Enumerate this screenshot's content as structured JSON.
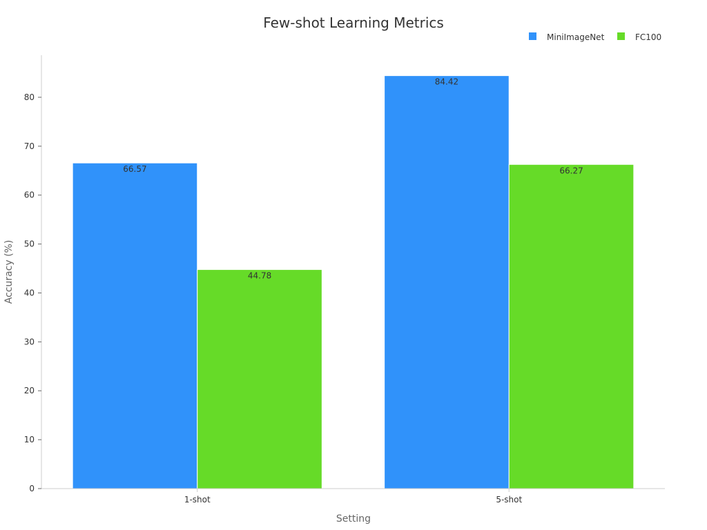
{
  "chart_data": {
    "type": "bar",
    "title": "Few-shot Learning Metrics",
    "xlabel": "Setting",
    "ylabel": "Accuracy (%)",
    "categories": [
      "1-shot",
      "5-shot"
    ],
    "series": [
      {
        "name": "MiniImageNet",
        "color": "#3092fa",
        "values": [
          66.57,
          84.42
        ]
      },
      {
        "name": "FC100",
        "color": "#66db28",
        "values": [
          44.78,
          66.27
        ]
      }
    ],
    "ylim": [
      0,
      88.6
    ],
    "yticks": [
      0,
      10,
      20,
      30,
      40,
      50,
      60,
      70,
      80
    ],
    "legend_position": "top-right",
    "grid": false
  }
}
